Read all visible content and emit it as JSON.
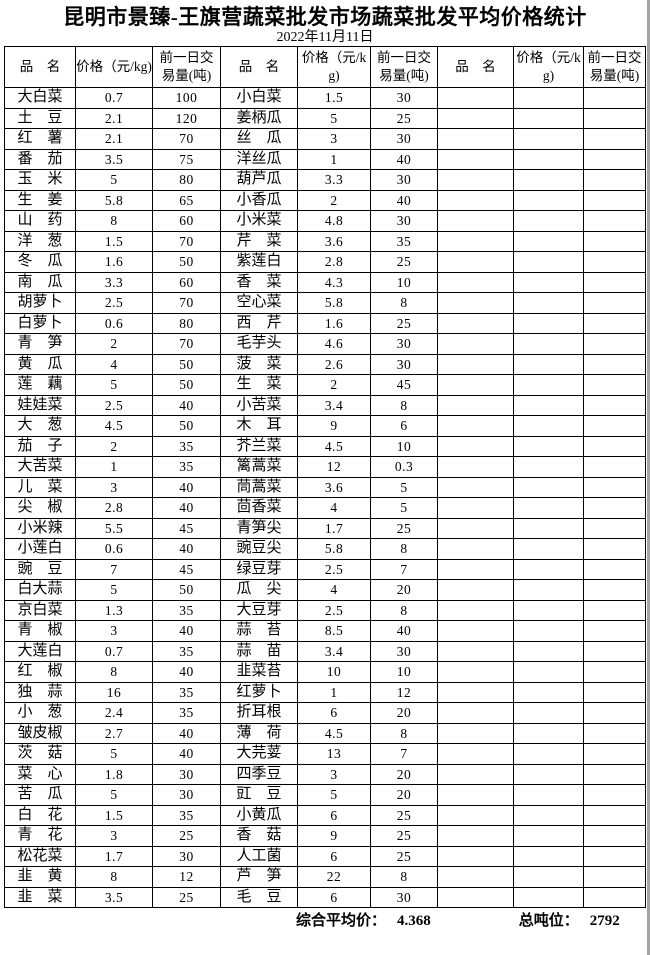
{
  "page": {
    "title": "昆明市景臻-王旗营蔬菜批发市场蔬菜批发平均价格统计",
    "date": "2022年11月11日"
  },
  "colors": {
    "text": "#000000",
    "border": "#000000",
    "background": "#ffffff",
    "scan_edge": "#a3a3a3"
  },
  "table": {
    "header": {
      "name": "品　名",
      "price": "价格（元/kg)",
      "volume": "前一日交易量(吨)"
    },
    "left": [
      {
        "name": "大白菜",
        "price": "0.7",
        "volume": "100"
      },
      {
        "name": "土　豆",
        "price": "2.1",
        "volume": "120"
      },
      {
        "name": "红　薯",
        "price": "2.1",
        "volume": "70"
      },
      {
        "name": "番　茄",
        "price": "3.5",
        "volume": "75"
      },
      {
        "name": "玉　米",
        "price": "5",
        "volume": "80"
      },
      {
        "name": "生　姜",
        "price": "5.8",
        "volume": "65"
      },
      {
        "name": "山　药",
        "price": "8",
        "volume": "60"
      },
      {
        "name": "洋　葱",
        "price": "1.5",
        "volume": "70"
      },
      {
        "name": "冬　瓜",
        "price": "1.6",
        "volume": "50"
      },
      {
        "name": "南　瓜",
        "price": "3.3",
        "volume": "60"
      },
      {
        "name": "胡萝卜",
        "price": "2.5",
        "volume": "70"
      },
      {
        "name": "白萝卜",
        "price": "0.6",
        "volume": "80"
      },
      {
        "name": "青　笋",
        "price": "2",
        "volume": "70"
      },
      {
        "name": "黄　瓜",
        "price": "4",
        "volume": "50"
      },
      {
        "name": "莲　藕",
        "price": "5",
        "volume": "50"
      },
      {
        "name": "娃娃菜",
        "price": "2.5",
        "volume": "40"
      },
      {
        "name": "大　葱",
        "price": "4.5",
        "volume": "50"
      },
      {
        "name": "茄　子",
        "price": "2",
        "volume": "35"
      },
      {
        "name": "大苦菜",
        "price": "1",
        "volume": "35"
      },
      {
        "name": "儿　菜",
        "price": "3",
        "volume": "40"
      },
      {
        "name": "尖　椒",
        "price": "2.8",
        "volume": "40"
      },
      {
        "name": "小米辣",
        "price": "5.5",
        "volume": "45"
      },
      {
        "name": "小莲白",
        "price": "0.6",
        "volume": "40"
      },
      {
        "name": "豌　豆",
        "price": "7",
        "volume": "45"
      },
      {
        "name": "白大蒜",
        "price": "5",
        "volume": "50"
      },
      {
        "name": "京白菜",
        "price": "1.3",
        "volume": "35"
      },
      {
        "name": "青　椒",
        "price": "3",
        "volume": "40"
      },
      {
        "name": "大莲白",
        "price": "0.7",
        "volume": "35"
      },
      {
        "name": "红　椒",
        "price": "8",
        "volume": "40"
      },
      {
        "name": "独　蒜",
        "price": "16",
        "volume": "35"
      },
      {
        "name": "小　葱",
        "price": "2.4",
        "volume": "35"
      },
      {
        "name": "皱皮椒",
        "price": "2.7",
        "volume": "40"
      },
      {
        "name": "茨　菇",
        "price": "5",
        "volume": "40"
      },
      {
        "name": "菜　心",
        "price": "1.8",
        "volume": "30"
      },
      {
        "name": "苦　瓜",
        "price": "5",
        "volume": "30"
      },
      {
        "name": "白　花",
        "price": "1.5",
        "volume": "35"
      },
      {
        "name": "青　花",
        "price": "3",
        "volume": "25"
      },
      {
        "name": "松花菜",
        "price": "1.7",
        "volume": "30"
      },
      {
        "name": "韭　黄",
        "price": "8",
        "volume": "12"
      },
      {
        "name": "韭　菜",
        "price": "3.5",
        "volume": "25"
      }
    ],
    "middle": [
      {
        "name": "小白菜",
        "price": "1.5",
        "volume": "30"
      },
      {
        "name": "姜柄瓜",
        "price": "5",
        "volume": "25"
      },
      {
        "name": "丝　瓜",
        "price": "3",
        "volume": "30"
      },
      {
        "name": "洋丝瓜",
        "price": "1",
        "volume": "40"
      },
      {
        "name": "葫芦瓜",
        "price": "3.3",
        "volume": "30"
      },
      {
        "name": "小香瓜",
        "price": "2",
        "volume": "40"
      },
      {
        "name": "小米菜",
        "price": "4.8",
        "volume": "30"
      },
      {
        "name": "芹　菜",
        "price": "3.6",
        "volume": "35"
      },
      {
        "name": "紫莲白",
        "price": "2.8",
        "volume": "25"
      },
      {
        "name": "香　菜",
        "price": "4.3",
        "volume": "10"
      },
      {
        "name": "空心菜",
        "price": "5.8",
        "volume": "8"
      },
      {
        "name": "西　芹",
        "price": "1.6",
        "volume": "25"
      },
      {
        "name": "毛芋头",
        "price": "4.6",
        "volume": "30"
      },
      {
        "name": "菠　菜",
        "price": "2.6",
        "volume": "30"
      },
      {
        "name": "生　菜",
        "price": "2",
        "volume": "45"
      },
      {
        "name": "小苦菜",
        "price": "3.4",
        "volume": "8"
      },
      {
        "name": "木　耳",
        "price": "9",
        "volume": "6"
      },
      {
        "name": "芥兰菜",
        "price": "4.5",
        "volume": "10"
      },
      {
        "name": "篱蒿菜",
        "price": "12",
        "volume": "0.3"
      },
      {
        "name": "茼蒿菜",
        "price": "3.6",
        "volume": "5"
      },
      {
        "name": "茴香菜",
        "price": "4",
        "volume": "5"
      },
      {
        "name": "青笋尖",
        "price": "1.7",
        "volume": "25"
      },
      {
        "name": "豌豆尖",
        "price": "5.8",
        "volume": "8"
      },
      {
        "name": "绿豆芽",
        "price": "2.5",
        "volume": "7"
      },
      {
        "name": "瓜　尖",
        "price": "4",
        "volume": "20"
      },
      {
        "name": "大豆芽",
        "price": "2.5",
        "volume": "8"
      },
      {
        "name": "蒜　苔",
        "price": "8.5",
        "volume": "40"
      },
      {
        "name": "蒜　苗",
        "price": "3.4",
        "volume": "30"
      },
      {
        "name": "韭菜苔",
        "price": "10",
        "volume": "10"
      },
      {
        "name": "红萝卜",
        "price": "1",
        "volume": "12"
      },
      {
        "name": "折耳根",
        "price": "6",
        "volume": "20"
      },
      {
        "name": "薄　荷",
        "price": "4.5",
        "volume": "8"
      },
      {
        "name": "大芫荽",
        "price": "13",
        "volume": "7"
      },
      {
        "name": "四季豆",
        "price": "3",
        "volume": "20"
      },
      {
        "name": "豇　豆",
        "price": "5",
        "volume": "20"
      },
      {
        "name": "小黄瓜",
        "price": "6",
        "volume": "25"
      },
      {
        "name": "香　菇",
        "price": "9",
        "volume": "25"
      },
      {
        "name": "人工菌",
        "price": "6",
        "volume": "25"
      },
      {
        "name": "芦　笋",
        "price": "22",
        "volume": "8"
      },
      {
        "name": "毛　豆",
        "price": "6",
        "volume": "30"
      }
    ],
    "right": []
  },
  "footer": {
    "avg_label": "综合平均价：",
    "avg_value": "4.368",
    "total_label": "总吨位：",
    "total_value": "2792"
  }
}
